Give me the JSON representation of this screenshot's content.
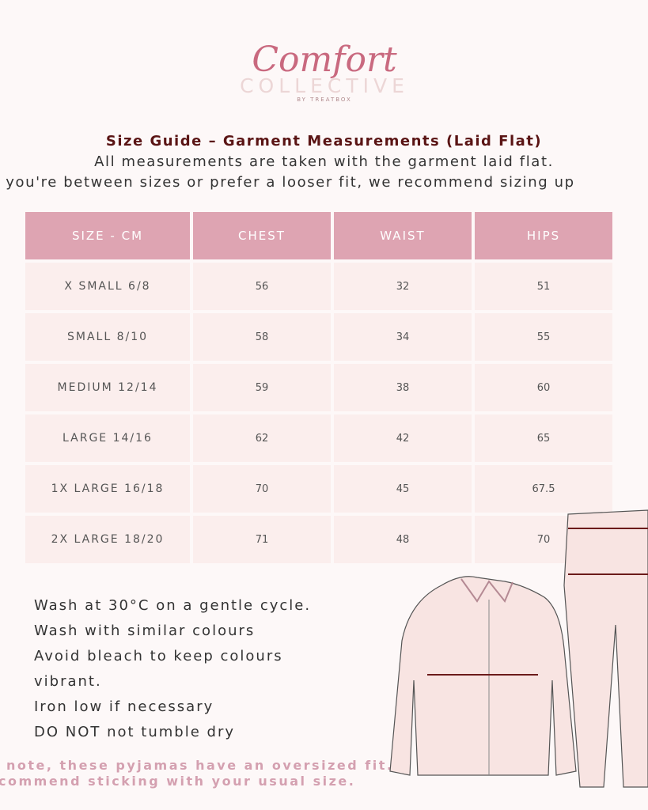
{
  "logo": {
    "script": "Comfort",
    "main": "COLLECTIVE",
    "sub": "BY TREATBOX"
  },
  "heading": {
    "title": "Size Guide – Garment Measurements (Laid Flat)",
    "line1": "All measurements are taken with the garment laid flat.",
    "line2": "f you're between sizes or prefer a looser fit, we recommend sizing up"
  },
  "table": {
    "headers": [
      "SIZE - CM",
      "CHEST",
      "WAIST",
      "HIPS"
    ],
    "rows": [
      [
        "X SMALL 6/8",
        "56",
        "32",
        "51"
      ],
      [
        "SMALL 8/10",
        "58",
        "34",
        "55"
      ],
      [
        "MEDIUM 12/14",
        "59",
        "38",
        "60"
      ],
      [
        "LARGE 14/16",
        "62",
        "42",
        "65"
      ],
      [
        "1X LARGE 16/18",
        "70",
        "45",
        "67.5"
      ],
      [
        "2X LARGE 18/20",
        "71",
        "48",
        "70"
      ]
    ]
  },
  "care": [
    "Wash at 30°C on a gentle cycle.",
    "Wash with similar colours",
    "Avoid bleach to keep colours",
    "vibrant.",
    "Iron low if necessary",
    "DO NOT not tumble dry"
  ],
  "note": {
    "line1": "note, these pyjamas have an oversized fit.",
    "line2": "commend sticking with your usual size."
  },
  "colors": {
    "header": "#dea4b2",
    "cell": "#fbeeed",
    "title": "#5a1414",
    "note": "#d4a0b0"
  }
}
